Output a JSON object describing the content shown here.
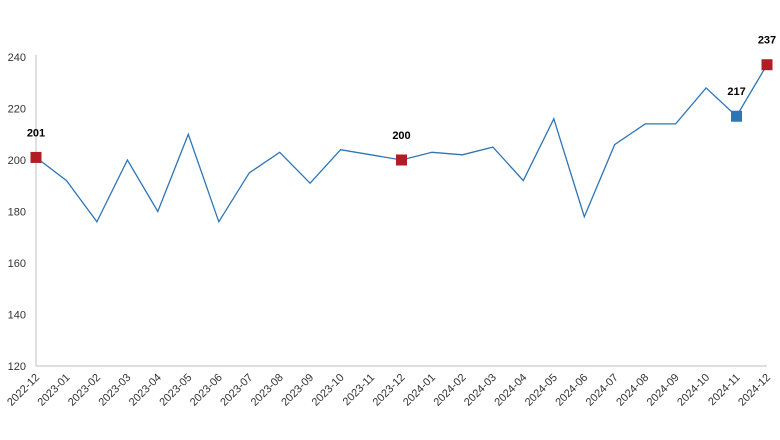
{
  "chart_data": {
    "type": "line",
    "title": "",
    "xlabel": "",
    "ylabel": "",
    "categories": [
      "2022-12",
      "2023-01",
      "2023-02",
      "2023-03",
      "2023-04",
      "2023-05",
      "2023-06",
      "2023-07",
      "2023-08",
      "2023-09",
      "2023-10",
      "2023-11",
      "2023-12",
      "2024-01",
      "2024-02",
      "2024-03",
      "2024-04",
      "2024-05",
      "2024-06",
      "2024-07",
      "2024-08",
      "2024-09",
      "2024-10",
      "2024-11",
      "2024-12"
    ],
    "series": [
      {
        "values": [
          201,
          192,
          176,
          200,
          180,
          210,
          176,
          195,
          203,
          191,
          204,
          202,
          200,
          203,
          202,
          205,
          192,
          216,
          178,
          206,
          214,
          214,
          228,
          217,
          237
        ]
      }
    ],
    "ylim": [
      120,
      240
    ],
    "yticks": [
      120,
      140,
      160,
      180,
      200,
      220,
      240
    ],
    "grid": false,
    "legend": "none",
    "highlighted_points": [
      {
        "category": "2022-12",
        "value": 201,
        "label": "201",
        "color": "#b01e23"
      },
      {
        "category": "2023-12",
        "value": 200,
        "label": "200",
        "color": "#b01e23"
      },
      {
        "category": "2024-11",
        "value": 217,
        "label": "217",
        "color": "#2e75b6"
      },
      {
        "category": "2024-12",
        "value": 237,
        "label": "237",
        "color": "#b01e23"
      }
    ],
    "colors": {
      "line": "#2e75b6",
      "axis": "#bfbfbf"
    }
  }
}
